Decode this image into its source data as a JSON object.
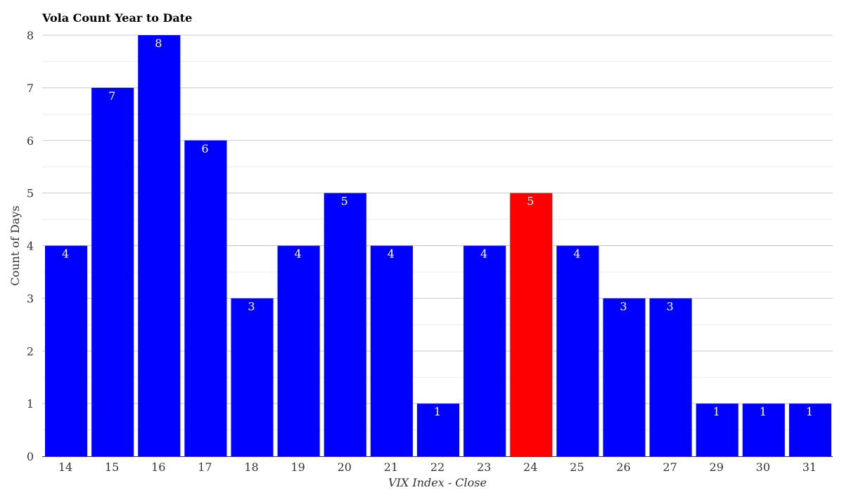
{
  "chart_data": {
    "type": "bar",
    "title": "Vola Count Year to Date",
    "xlabel": "VIX Index - Close",
    "ylabel": "Count of Days",
    "categories": [
      "14",
      "15",
      "16",
      "17",
      "18",
      "19",
      "20",
      "21",
      "22",
      "23",
      "24",
      "25",
      "26",
      "27",
      "29",
      "30",
      "31"
    ],
    "values": [
      4,
      7,
      8,
      6,
      3,
      4,
      5,
      4,
      1,
      4,
      5,
      4,
      3,
      3,
      1,
      1,
      1
    ],
    "highlight_category": "24",
    "ylim": [
      0,
      8
    ],
    "yticks": [
      0,
      1,
      2,
      3,
      4,
      5,
      6,
      7,
      8
    ],
    "grid": true,
    "legend": "none",
    "colors": {
      "bar": "#0000ff",
      "highlight": "#ff0000",
      "label": "#ffffff"
    }
  }
}
